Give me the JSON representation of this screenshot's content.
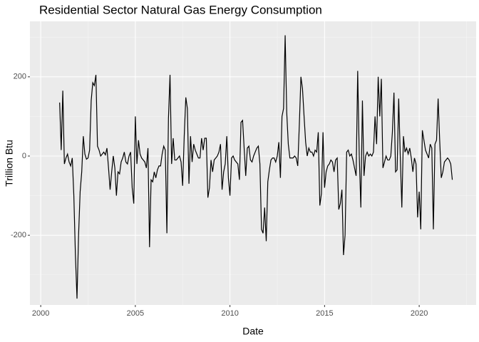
{
  "chart_data": {
    "type": "line",
    "title": "Residential Sector Natural Gas Energy Consumption",
    "x_label": "Date",
    "y_label": "Trillion Btu",
    "xlim": [
      1999.43,
      2023.01
    ],
    "ylim": [
      -376,
      340
    ],
    "xticks": [
      2000,
      2005,
      2010,
      2015,
      2020
    ],
    "yticks": [
      -200,
      0,
      200
    ],
    "grid": true,
    "series": [
      {
        "color": "#000000",
        "x": [
          2001,
          2001.083,
          2001.167,
          2001.25,
          2001.333,
          2001.417,
          2001.5,
          2001.583,
          2001.667,
          2001.75,
          2001.833,
          2001.917,
          2002,
          2002.083,
          2002.167,
          2002.25,
          2002.333,
          2002.417,
          2002.5,
          2002.583,
          2002.667,
          2002.75,
          2002.833,
          2002.917,
          2003,
          2003.083,
          2003.167,
          2003.25,
          2003.333,
          2003.417,
          2003.5,
          2003.583,
          2003.667,
          2003.75,
          2003.833,
          2003.917,
          2004,
          2004.083,
          2004.167,
          2004.25,
          2004.333,
          2004.417,
          2004.5,
          2004.583,
          2004.667,
          2004.75,
          2004.833,
          2004.917,
          2005,
          2005.083,
          2005.167,
          2005.25,
          2005.333,
          2005.417,
          2005.5,
          2005.583,
          2005.667,
          2005.75,
          2005.833,
          2005.917,
          2006,
          2006.083,
          2006.167,
          2006.25,
          2006.333,
          2006.417,
          2006.5,
          2006.583,
          2006.667,
          2006.75,
          2006.833,
          2006.917,
          2007,
          2007.083,
          2007.167,
          2007.25,
          2007.333,
          2007.417,
          2007.5,
          2007.583,
          2007.667,
          2007.75,
          2007.833,
          2007.917,
          2008,
          2008.083,
          2008.167,
          2008.25,
          2008.333,
          2008.417,
          2008.5,
          2008.583,
          2008.667,
          2008.75,
          2008.833,
          2008.917,
          2009,
          2009.083,
          2009.167,
          2009.25,
          2009.333,
          2009.417,
          2009.5,
          2009.583,
          2009.667,
          2009.75,
          2009.833,
          2009.917,
          2010,
          2010.083,
          2010.167,
          2010.25,
          2010.333,
          2010.417,
          2010.5,
          2010.583,
          2010.667,
          2010.75,
          2010.833,
          2010.917,
          2011,
          2011.083,
          2011.167,
          2011.25,
          2011.333,
          2011.417,
          2011.5,
          2011.583,
          2011.667,
          2011.75,
          2011.833,
          2011.917,
          2012,
          2012.083,
          2012.167,
          2012.25,
          2012.333,
          2012.417,
          2012.5,
          2012.583,
          2012.667,
          2012.75,
          2012.833,
          2012.917,
          2013,
          2013.083,
          2013.167,
          2013.25,
          2013.333,
          2013.417,
          2013.5,
          2013.583,
          2013.667,
          2013.75,
          2013.833,
          2013.917,
          2014,
          2014.083,
          2014.167,
          2014.25,
          2014.333,
          2014.417,
          2014.5,
          2014.583,
          2014.667,
          2014.75,
          2014.833,
          2014.917,
          2015,
          2015.083,
          2015.167,
          2015.25,
          2015.333,
          2015.417,
          2015.5,
          2015.583,
          2015.667,
          2015.75,
          2015.833,
          2015.917,
          2016,
          2016.083,
          2016.167,
          2016.25,
          2016.333,
          2016.417,
          2016.5,
          2016.583,
          2016.667,
          2016.75,
          2016.833,
          2016.917,
          2017,
          2017.083,
          2017.167,
          2017.25,
          2017.333,
          2017.417,
          2017.5,
          2017.583,
          2017.667,
          2017.75,
          2017.833,
          2017.917,
          2018,
          2018.083,
          2018.167,
          2018.25,
          2018.333,
          2018.417,
          2018.5,
          2018.583,
          2018.667,
          2018.75,
          2018.833,
          2018.917,
          2019,
          2019.083,
          2019.167,
          2019.25,
          2019.333,
          2019.417,
          2019.5,
          2019.583,
          2019.667,
          2019.75,
          2019.833,
          2019.917,
          2020,
          2020.083,
          2020.167,
          2020.25,
          2020.333,
          2020.417,
          2020.5,
          2020.583,
          2020.667,
          2020.75,
          2020.833,
          2020.917,
          2021,
          2021.083,
          2021.167,
          2021.25,
          2021.333,
          2021.417,
          2021.5,
          2021.583,
          2021.667,
          2021.75
        ],
        "values": [
          135,
          15,
          165,
          -20,
          -5,
          5,
          -15,
          -25,
          -5,
          -100,
          -250,
          -360,
          -200,
          -90,
          -40,
          50,
          5,
          -8,
          -5,
          15,
          140,
          185,
          178,
          205,
          25,
          15,
          0,
          5,
          10,
          3,
          20,
          -30,
          -85,
          -40,
          0,
          -30,
          -100,
          -40,
          -45,
          -15,
          -5,
          10,
          -15,
          -20,
          0,
          10,
          -80,
          -120,
          100,
          -20,
          40,
          5,
          -5,
          -10,
          -15,
          -30,
          20,
          -230,
          -60,
          -65,
          -40,
          -55,
          -35,
          -25,
          -25,
          5,
          25,
          15,
          -195,
          95,
          205,
          -20,
          45,
          -10,
          -10,
          -5,
          0,
          -15,
          -75,
          50,
          148,
          120,
          -70,
          50,
          -15,
          30,
          15,
          5,
          -5,
          -5,
          45,
          15,
          45,
          45,
          -105,
          -80,
          -10,
          -40,
          -10,
          -5,
          0,
          10,
          30,
          -85,
          -40,
          -20,
          50,
          -55,
          -100,
          -5,
          0,
          -10,
          -15,
          -20,
          -60,
          85,
          90,
          20,
          -50,
          20,
          25,
          -10,
          -15,
          0,
          10,
          20,
          25,
          -20,
          -185,
          -195,
          -130,
          -215,
          -65,
          -35,
          -10,
          -5,
          -5,
          -15,
          0,
          35,
          -55,
          100,
          120,
          305,
          110,
          30,
          -5,
          -5,
          -5,
          0,
          -5,
          -25,
          80,
          200,
          170,
          100,
          35,
          0,
          20,
          10,
          10,
          0,
          15,
          10,
          60,
          -125,
          -95,
          60,
          -80,
          -40,
          -25,
          -20,
          -10,
          -15,
          -40,
          -10,
          -5,
          -135,
          -120,
          -85,
          -250,
          -200,
          10,
          15,
          0,
          5,
          -10,
          -30,
          -50,
          215,
          0,
          -130,
          140,
          -50,
          0,
          10,
          0,
          5,
          0,
          10,
          100,
          30,
          200,
          100,
          195,
          -30,
          -15,
          0,
          -10,
          -10,
          0,
          60,
          160,
          -40,
          -35,
          145,
          0,
          -130,
          50,
          10,
          20,
          5,
          20,
          -5,
          -40,
          -5,
          -20,
          -155,
          -90,
          -185,
          65,
          40,
          15,
          5,
          -5,
          30,
          20,
          -185,
          30,
          40,
          145,
          40,
          -55,
          -40,
          -15,
          -10,
          -5,
          -10,
          -20,
          -60
        ]
      }
    ]
  }
}
